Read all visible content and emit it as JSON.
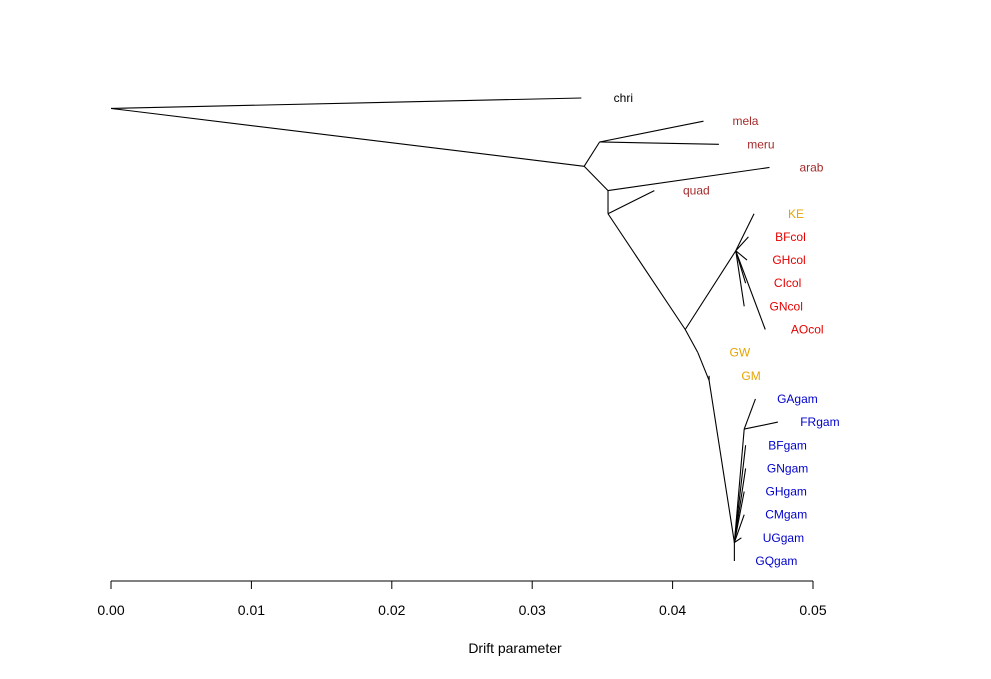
{
  "chart_data": {
    "type": "tree",
    "xlabel": "Drift parameter",
    "xlim": [
      0.0,
      0.05
    ],
    "ticks": [
      "0.00",
      "0.01",
      "0.02",
      "0.03",
      "0.04",
      "0.05"
    ],
    "colors": {
      "outgroup": "#000000",
      "species": "#a52a2a",
      "hybrid": "#e6a500",
      "coluzzii": "#e60000",
      "gambiae": "#0000cc"
    },
    "nodes": [
      {
        "id": "root",
        "drift": 0.0,
        "row": 1.45
      },
      {
        "id": "n1",
        "drift": 0.0337,
        "row": 3.95
      },
      {
        "id": "n2",
        "drift": 0.0348,
        "row": 2.9
      },
      {
        "id": "n3",
        "drift": 0.0354,
        "row": 5.0
      },
      {
        "id": "n4",
        "drift": 0.0354,
        "row": 6.0
      },
      {
        "id": "n5",
        "drift": 0.0409,
        "row": 11.0
      },
      {
        "id": "n6",
        "drift": 0.0445,
        "row": 7.6
      },
      {
        "id": "n7",
        "drift": 0.0418,
        "row": 12.0
      },
      {
        "id": "n8",
        "drift": 0.0426,
        "row": 13.2
      },
      {
        "id": "n9",
        "drift": 0.0444,
        "row": 20.2
      },
      {
        "id": "n10",
        "drift": 0.0451,
        "row": 15.3
      }
    ],
    "leaves": [
      {
        "label": "chri",
        "parent": "root",
        "drift": 0.0335,
        "row": 1.0,
        "group": "outgroup"
      },
      {
        "label": "mela",
        "parent": "n2",
        "drift": 0.0422,
        "row": 2.0,
        "group": "species"
      },
      {
        "label": "meru",
        "parent": "n2",
        "drift": 0.0433,
        "row": 3.0,
        "group": "species"
      },
      {
        "label": "arab",
        "parent": "n3",
        "drift": 0.0469,
        "row": 4.0,
        "group": "species"
      },
      {
        "label": "quad",
        "parent": "n4",
        "drift": 0.0387,
        "row": 5.0,
        "group": "species"
      },
      {
        "label": "KE",
        "parent": "n6",
        "drift": 0.0458,
        "row": 6.0,
        "group": "hybrid"
      },
      {
        "label": "BFcol",
        "parent": "n6",
        "drift": 0.0454,
        "row": 7.0,
        "group": "coluzzii"
      },
      {
        "label": "GHcol",
        "parent": "n6",
        "drift": 0.0453,
        "row": 8.0,
        "group": "coluzzii"
      },
      {
        "label": "CIcol",
        "parent": "n6",
        "drift": 0.0452,
        "row": 9.0,
        "group": "coluzzii"
      },
      {
        "label": "GNcol",
        "parent": "n6",
        "drift": 0.0451,
        "row": 10.0,
        "group": "coluzzii"
      },
      {
        "label": "AOcol",
        "parent": "n6",
        "drift": 0.0466,
        "row": 11.0,
        "group": "coluzzii"
      },
      {
        "label": "GW",
        "parent": "n7",
        "drift": 0.0418,
        "row": 12.0,
        "group": "hybrid"
      },
      {
        "label": "GM",
        "parent": "n8",
        "drift": 0.0426,
        "row": 13.0,
        "group": "hybrid"
      },
      {
        "label": "GAgam",
        "parent": "n10",
        "drift": 0.0459,
        "row": 14.0,
        "group": "gambiae"
      },
      {
        "label": "FRgam",
        "parent": "n10",
        "drift": 0.0475,
        "row": 15.0,
        "group": "gambiae"
      },
      {
        "label": "BFgam",
        "parent": "n9",
        "drift": 0.0452,
        "row": 16.0,
        "group": "gambiae"
      },
      {
        "label": "GNgam",
        "parent": "n9",
        "drift": 0.0452,
        "row": 17.0,
        "group": "gambiae"
      },
      {
        "label": "GHgam",
        "parent": "n9",
        "drift": 0.0451,
        "row": 18.0,
        "group": "gambiae"
      },
      {
        "label": "CMgam",
        "parent": "n9",
        "drift": 0.0451,
        "row": 19.0,
        "group": "gambiae"
      },
      {
        "label": "UGgam",
        "parent": "n9",
        "drift": 0.0449,
        "row": 20.0,
        "group": "gambiae"
      },
      {
        "label": "GQgam",
        "parent": "n9",
        "drift": 0.0444,
        "row": 21.0,
        "group": "gambiae"
      }
    ],
    "edges": [
      [
        "root",
        "n1"
      ],
      [
        "n1",
        "n2"
      ],
      [
        "n1",
        "n3"
      ],
      [
        "n3",
        "n4"
      ],
      [
        "n4",
        "n5"
      ],
      [
        "n5",
        "n6"
      ],
      [
        "n5",
        "n7"
      ],
      [
        "n7",
        "n8"
      ],
      [
        "n8",
        "n9"
      ],
      [
        "n9",
        "n10"
      ]
    ]
  }
}
